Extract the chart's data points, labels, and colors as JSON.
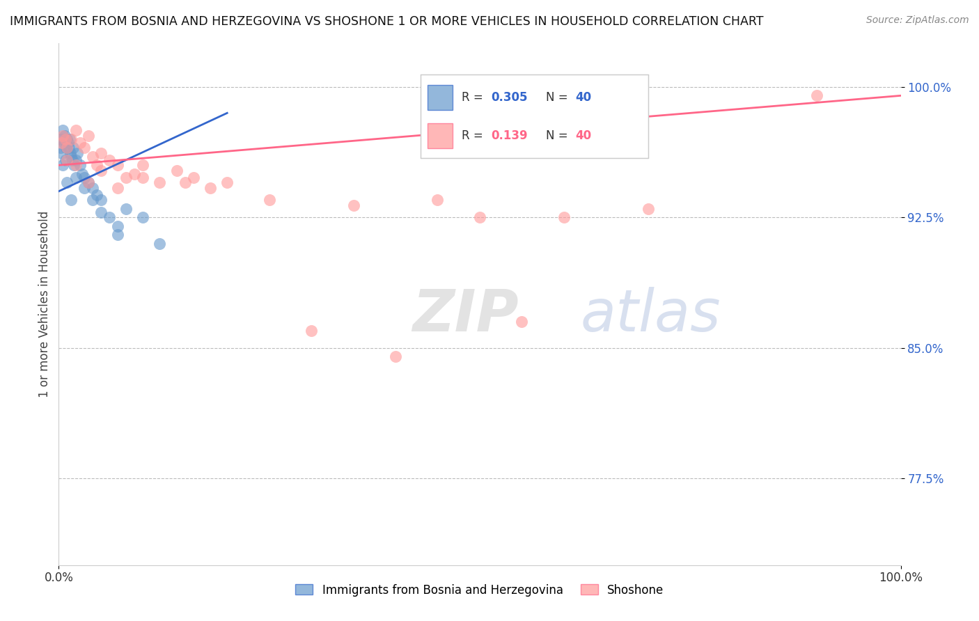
{
  "title": "IMMIGRANTS FROM BOSNIA AND HERZEGOVINA VS SHOSHONE 1 OR MORE VEHICLES IN HOUSEHOLD CORRELATION CHART",
  "source": "Source: ZipAtlas.com",
  "ylabel_label": "1 or more Vehicles in Household",
  "legend_blue_r": "0.305",
  "legend_blue_n": "40",
  "legend_pink_r": "0.139",
  "legend_pink_n": "40",
  "legend_blue_label": "Immigrants from Bosnia and Herzegovina",
  "legend_pink_label": "Shoshone",
  "blue_color": "#6699CC",
  "pink_color": "#FF9999",
  "blue_line_color": "#3366CC",
  "pink_line_color": "#FF6688",
  "blue_x": [
    0.2,
    0.3,
    0.4,
    0.5,
    0.6,
    0.7,
    0.8,
    0.9,
    1.0,
    1.1,
    1.2,
    1.3,
    1.4,
    1.5,
    1.6,
    1.7,
    1.8,
    2.0,
    2.2,
    2.5,
    2.8,
    3.0,
    3.5,
    4.0,
    4.5,
    5.0,
    6.0,
    7.0,
    8.0,
    10.0,
    0.5,
    0.8,
    1.0,
    1.5,
    2.0,
    3.0,
    4.0,
    5.0,
    7.0,
    12.0
  ],
  "blue_y": [
    96.5,
    97.0,
    96.2,
    97.5,
    96.8,
    97.2,
    97.0,
    96.5,
    97.0,
    96.8,
    96.5,
    97.0,
    96.2,
    96.0,
    95.8,
    96.5,
    95.5,
    95.8,
    96.2,
    95.5,
    95.0,
    94.8,
    94.5,
    94.2,
    93.8,
    93.5,
    92.5,
    92.0,
    93.0,
    92.5,
    95.5,
    95.8,
    94.5,
    93.5,
    94.8,
    94.2,
    93.5,
    92.8,
    91.5,
    91.0
  ],
  "pink_x": [
    0.3,
    0.5,
    0.8,
    1.0,
    1.5,
    2.0,
    2.5,
    3.0,
    3.5,
    4.0,
    4.5,
    5.0,
    6.0,
    7.0,
    8.0,
    9.0,
    10.0,
    12.0,
    14.0,
    16.0,
    18.0,
    20.0,
    25.0,
    30.0,
    35.0,
    40.0,
    45.0,
    50.0,
    60.0,
    65.0,
    1.0,
    2.0,
    3.5,
    5.0,
    7.0,
    10.0,
    15.0,
    55.0,
    70.0,
    90.0
  ],
  "pink_y": [
    96.8,
    97.2,
    97.0,
    96.5,
    97.0,
    97.5,
    96.8,
    96.5,
    97.2,
    96.0,
    95.5,
    96.2,
    95.8,
    95.5,
    94.8,
    95.0,
    95.5,
    94.5,
    95.2,
    94.8,
    94.2,
    94.5,
    93.5,
    86.0,
    93.2,
    84.5,
    93.5,
    92.5,
    92.5,
    100.0,
    95.8,
    95.5,
    94.5,
    95.2,
    94.2,
    94.8,
    94.5,
    86.5,
    93.0,
    99.5
  ]
}
